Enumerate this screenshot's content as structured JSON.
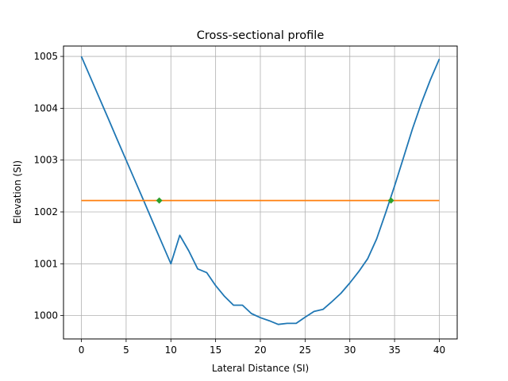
{
  "chart_data": {
    "type": "line",
    "title": "Cross-sectional profile",
    "xlabel": "Lateral Distance (SI)",
    "ylabel": "Elevation (SI)",
    "xlim": [
      -2,
      42
    ],
    "ylim": [
      999.55,
      1005.2
    ],
    "xticks": [
      0,
      5,
      10,
      15,
      20,
      25,
      30,
      35,
      40
    ],
    "yticks": [
      1000,
      1001,
      1002,
      1003,
      1004,
      1005
    ],
    "grid": true,
    "legend": "none",
    "series": [
      {
        "color": "#1f77b4",
        "style": "line",
        "x": [
          0,
          1,
          2,
          3,
          4,
          5,
          6,
          7,
          8,
          9,
          10,
          11,
          12,
          13,
          14,
          15,
          16,
          17,
          18,
          19,
          20,
          21,
          22,
          23,
          24,
          25,
          26,
          27,
          28,
          29,
          30,
          31,
          32,
          33,
          34,
          35,
          36,
          37,
          38,
          39,
          40
        ],
        "y": [
          1005.0,
          1004.6,
          1004.2,
          1003.8,
          1003.4,
          1003.0,
          1002.6,
          1002.2,
          1001.8,
          1001.4,
          1001.0,
          1001.55,
          1001.25,
          1000.9,
          1000.83,
          1000.58,
          1000.37,
          1000.2,
          1000.2,
          1000.04,
          999.96,
          999.9,
          999.83,
          999.85,
          999.85,
          999.97,
          1000.08,
          1000.12,
          1000.27,
          1000.43,
          1000.63,
          1000.85,
          1001.1,
          1001.48,
          1001.98,
          1002.5,
          1003.05,
          1003.6,
          1004.1,
          1004.55,
          1004.95
        ]
      },
      {
        "color": "#ff7f0e",
        "style": "line",
        "x": [
          0,
          40
        ],
        "y": [
          1002.22,
          1002.22
        ]
      },
      {
        "color": "#2ca02c",
        "style": "markers",
        "x": [
          8.7,
          34.6
        ],
        "y": [
          1002.22,
          1002.22
        ]
      }
    ]
  }
}
